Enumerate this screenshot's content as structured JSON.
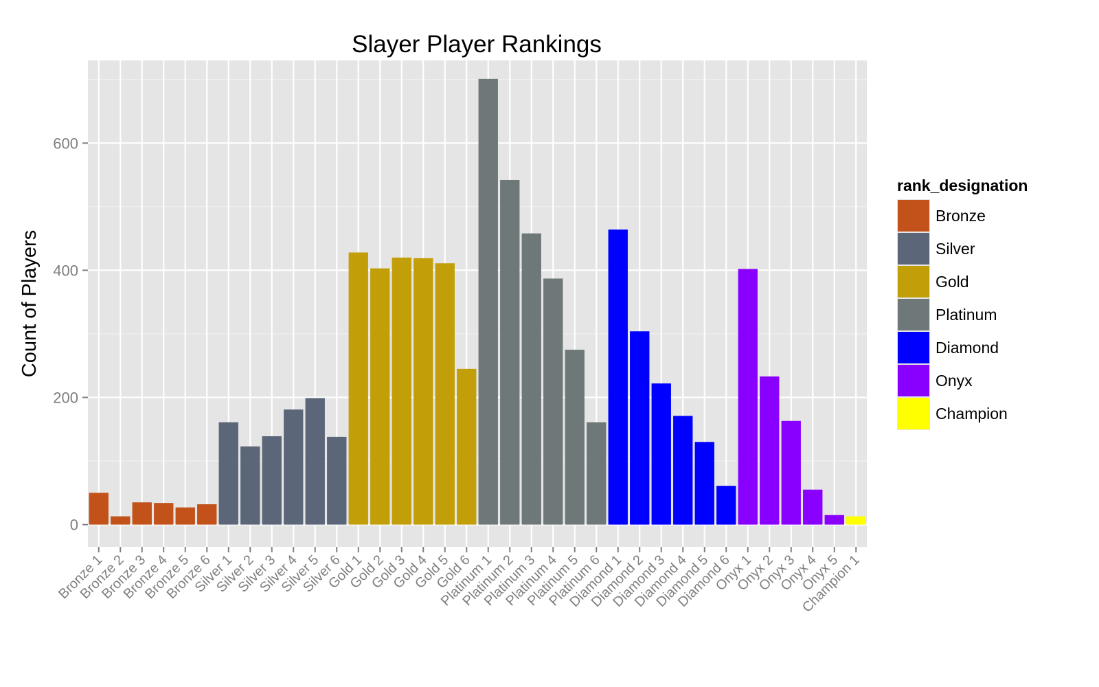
{
  "chart_data": {
    "type": "bar",
    "title": "Slayer Player Rankings",
    "xlabel": "",
    "ylabel": "Count of Players",
    "ylim": [
      -35,
      730
    ],
    "yticks": [
      0,
      200,
      400,
      600
    ],
    "grid": true,
    "legend_position": "right",
    "legend_title": "rank_designation",
    "legend": [
      {
        "name": "Bronze",
        "color": "#C2521A"
      },
      {
        "name": "Silver",
        "color": "#5C6679"
      },
      {
        "name": "Gold",
        "color": "#C29E09"
      },
      {
        "name": "Platinum",
        "color": "#6F7878"
      },
      {
        "name": "Diamond",
        "color": "#0000FF"
      },
      {
        "name": "Onyx",
        "color": "#8A00FF"
      },
      {
        "name": "Champion",
        "color": "#FFFF00"
      }
    ],
    "categories": [
      "Bronze 1",
      "Bronze 2",
      "Bronze 3",
      "Bronze 4",
      "Bronze 5",
      "Bronze 6",
      "Silver 1",
      "Silver 2",
      "Silver 3",
      "Silver 4",
      "Silver 5",
      "Silver 6",
      "Gold 1",
      "Gold 2",
      "Gold 3",
      "Gold 4",
      "Gold 5",
      "Gold 6",
      "Platinum 1",
      "Platinum 2",
      "Platinum 3",
      "Platinum 4",
      "Platinum 5",
      "Platinum 6",
      "Diamond 1",
      "Diamond 2",
      "Diamond 3",
      "Diamond 4",
      "Diamond 5",
      "Diamond 6",
      "Onyx 1",
      "Onyx 2",
      "Onyx 3",
      "Onyx 4",
      "Onyx 5",
      "Champion 1"
    ],
    "values": [
      50,
      13,
      35,
      34,
      27,
      32,
      161,
      123,
      139,
      181,
      199,
      138,
      428,
      403,
      420,
      419,
      411,
      245,
      701,
      542,
      458,
      387,
      275,
      161,
      464,
      304,
      222,
      171,
      130,
      61,
      402,
      233,
      163,
      55,
      15,
      13
    ],
    "groups": [
      "Bronze",
      "Bronze",
      "Bronze",
      "Bronze",
      "Bronze",
      "Bronze",
      "Silver",
      "Silver",
      "Silver",
      "Silver",
      "Silver",
      "Silver",
      "Gold",
      "Gold",
      "Gold",
      "Gold",
      "Gold",
      "Gold",
      "Platinum",
      "Platinum",
      "Platinum",
      "Platinum",
      "Platinum",
      "Platinum",
      "Diamond",
      "Diamond",
      "Diamond",
      "Diamond",
      "Diamond",
      "Diamond",
      "Onyx",
      "Onyx",
      "Onyx",
      "Onyx",
      "Onyx",
      "Champion"
    ]
  }
}
